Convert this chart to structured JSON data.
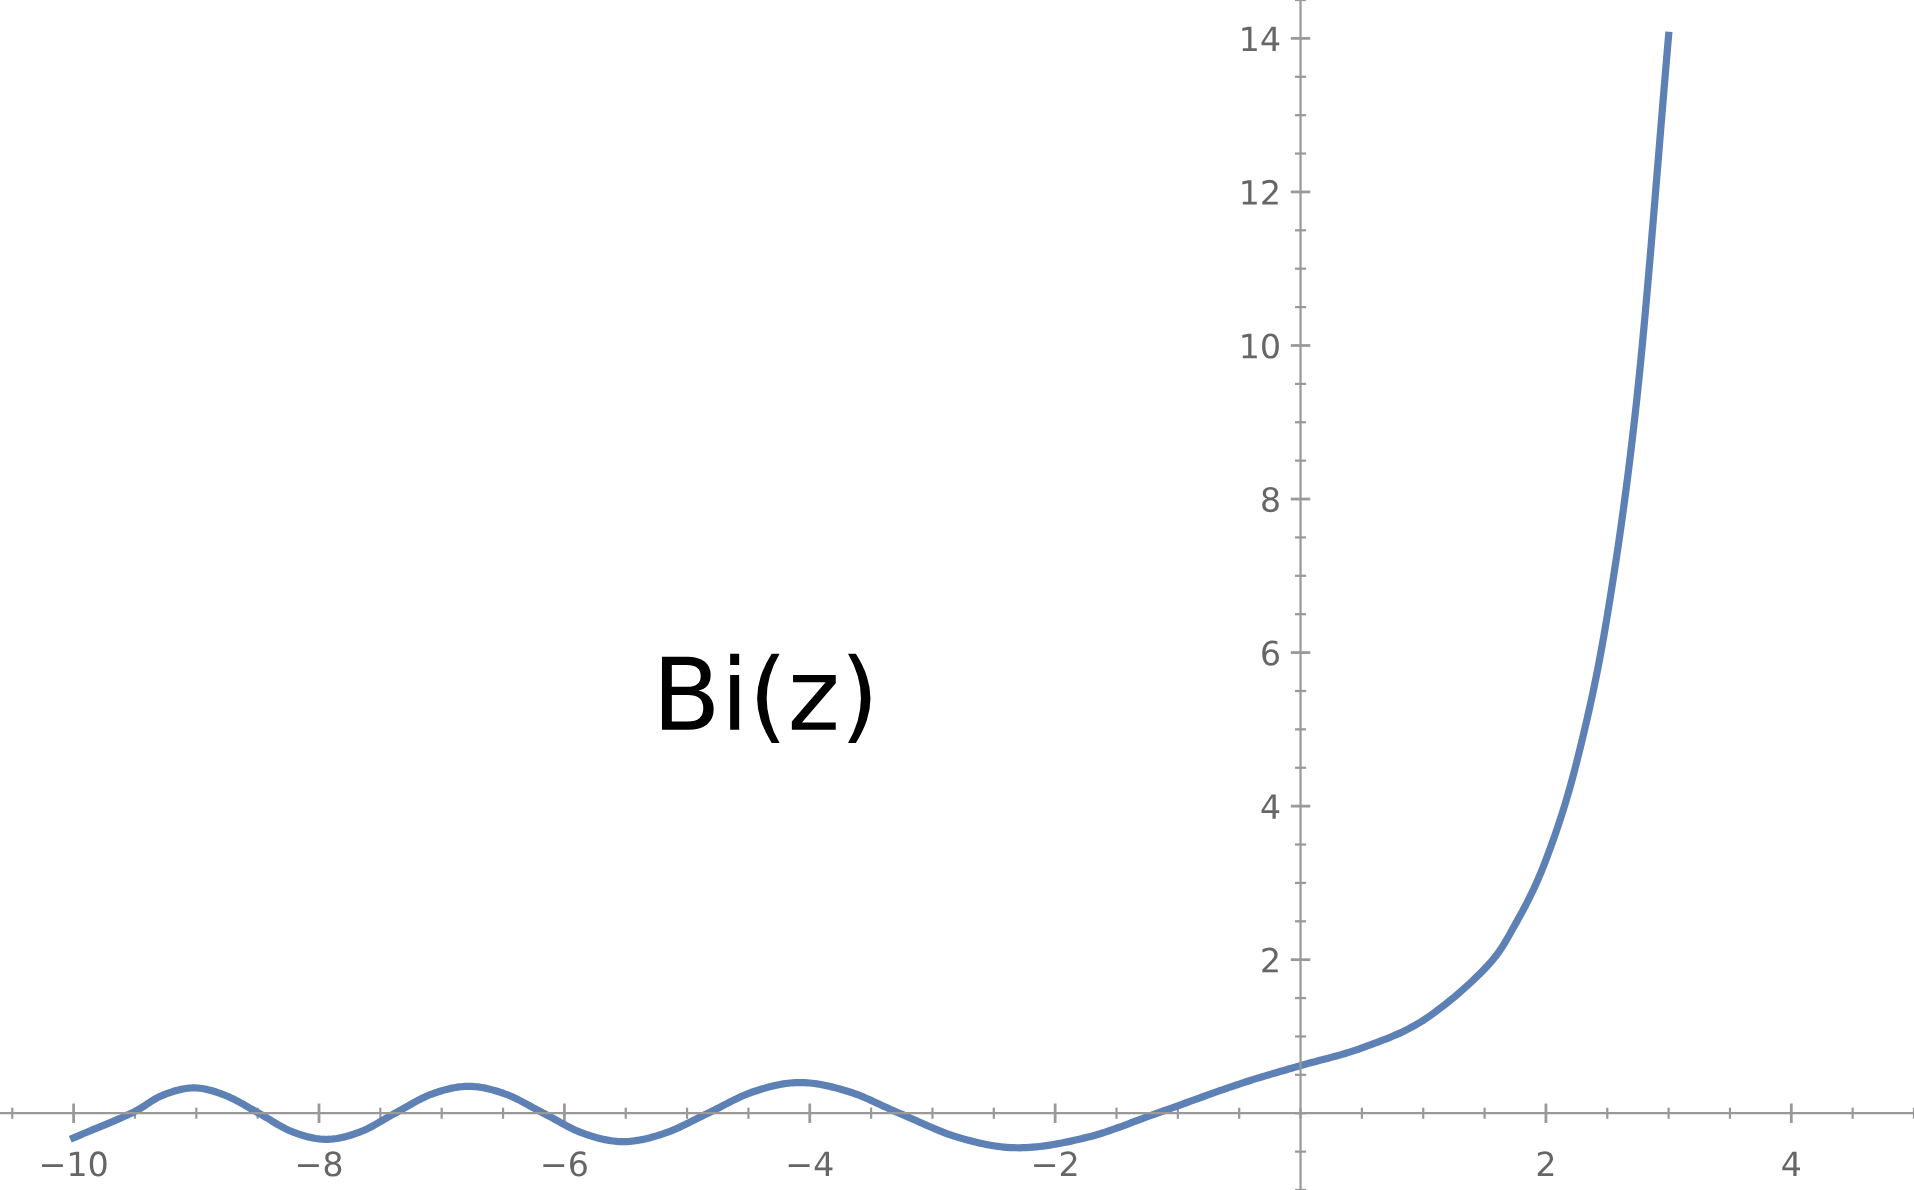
{
  "chart_data": {
    "type": "line",
    "annotations": [
      "Bi(z)"
    ],
    "x": [
      -10,
      -9.53,
      -9.28,
      -9.02,
      -8.76,
      -8.49,
      -8.22,
      -7.94,
      -7.66,
      -7.38,
      -7.08,
      -6.78,
      -6.48,
      -6.17,
      -5.85,
      -5.52,
      -5.18,
      -4.83,
      -4.46,
      -4.08,
      -3.68,
      -3.27,
      -2.78,
      -2.29,
      -1.73,
      -1.17,
      -0.5,
      0,
      0.5,
      1,
      1.5,
      1.75,
      2,
      2.25,
      2.5,
      2.75,
      3
    ],
    "series": [
      {
        "color": "#5e81b5",
        "values": [
          -0.32,
          0,
          0.23,
          0.33,
          0.23,
          0,
          -0.24,
          -0.34,
          -0.24,
          0,
          0.25,
          0.35,
          0.25,
          0,
          -0.26,
          -0.37,
          -0.26,
          0,
          0.28,
          0.4,
          0.28,
          0,
          -0.32,
          -0.45,
          -0.31,
          0,
          0.38,
          0.62,
          0.85,
          1.21,
          1.88,
          2.46,
          3.3,
          4.57,
          6.48,
          9.44,
          14.04
        ]
      }
    ],
    "xlim": [
      -10.6,
      5
    ],
    "ylim": [
      -1,
      14.5
    ],
    "xticks": [
      {
        "value": -10,
        "label": "−10"
      },
      {
        "value": -8,
        "label": "−8"
      },
      {
        "value": -6,
        "label": "−6"
      },
      {
        "value": -4,
        "label": "−4"
      },
      {
        "value": -2,
        "label": "−2"
      },
      2,
      4
    ],
    "yticks": [
      2,
      4,
      6,
      8,
      10,
      12,
      14
    ],
    "grid": false,
    "marker": "none",
    "line_style": "solid"
  }
}
